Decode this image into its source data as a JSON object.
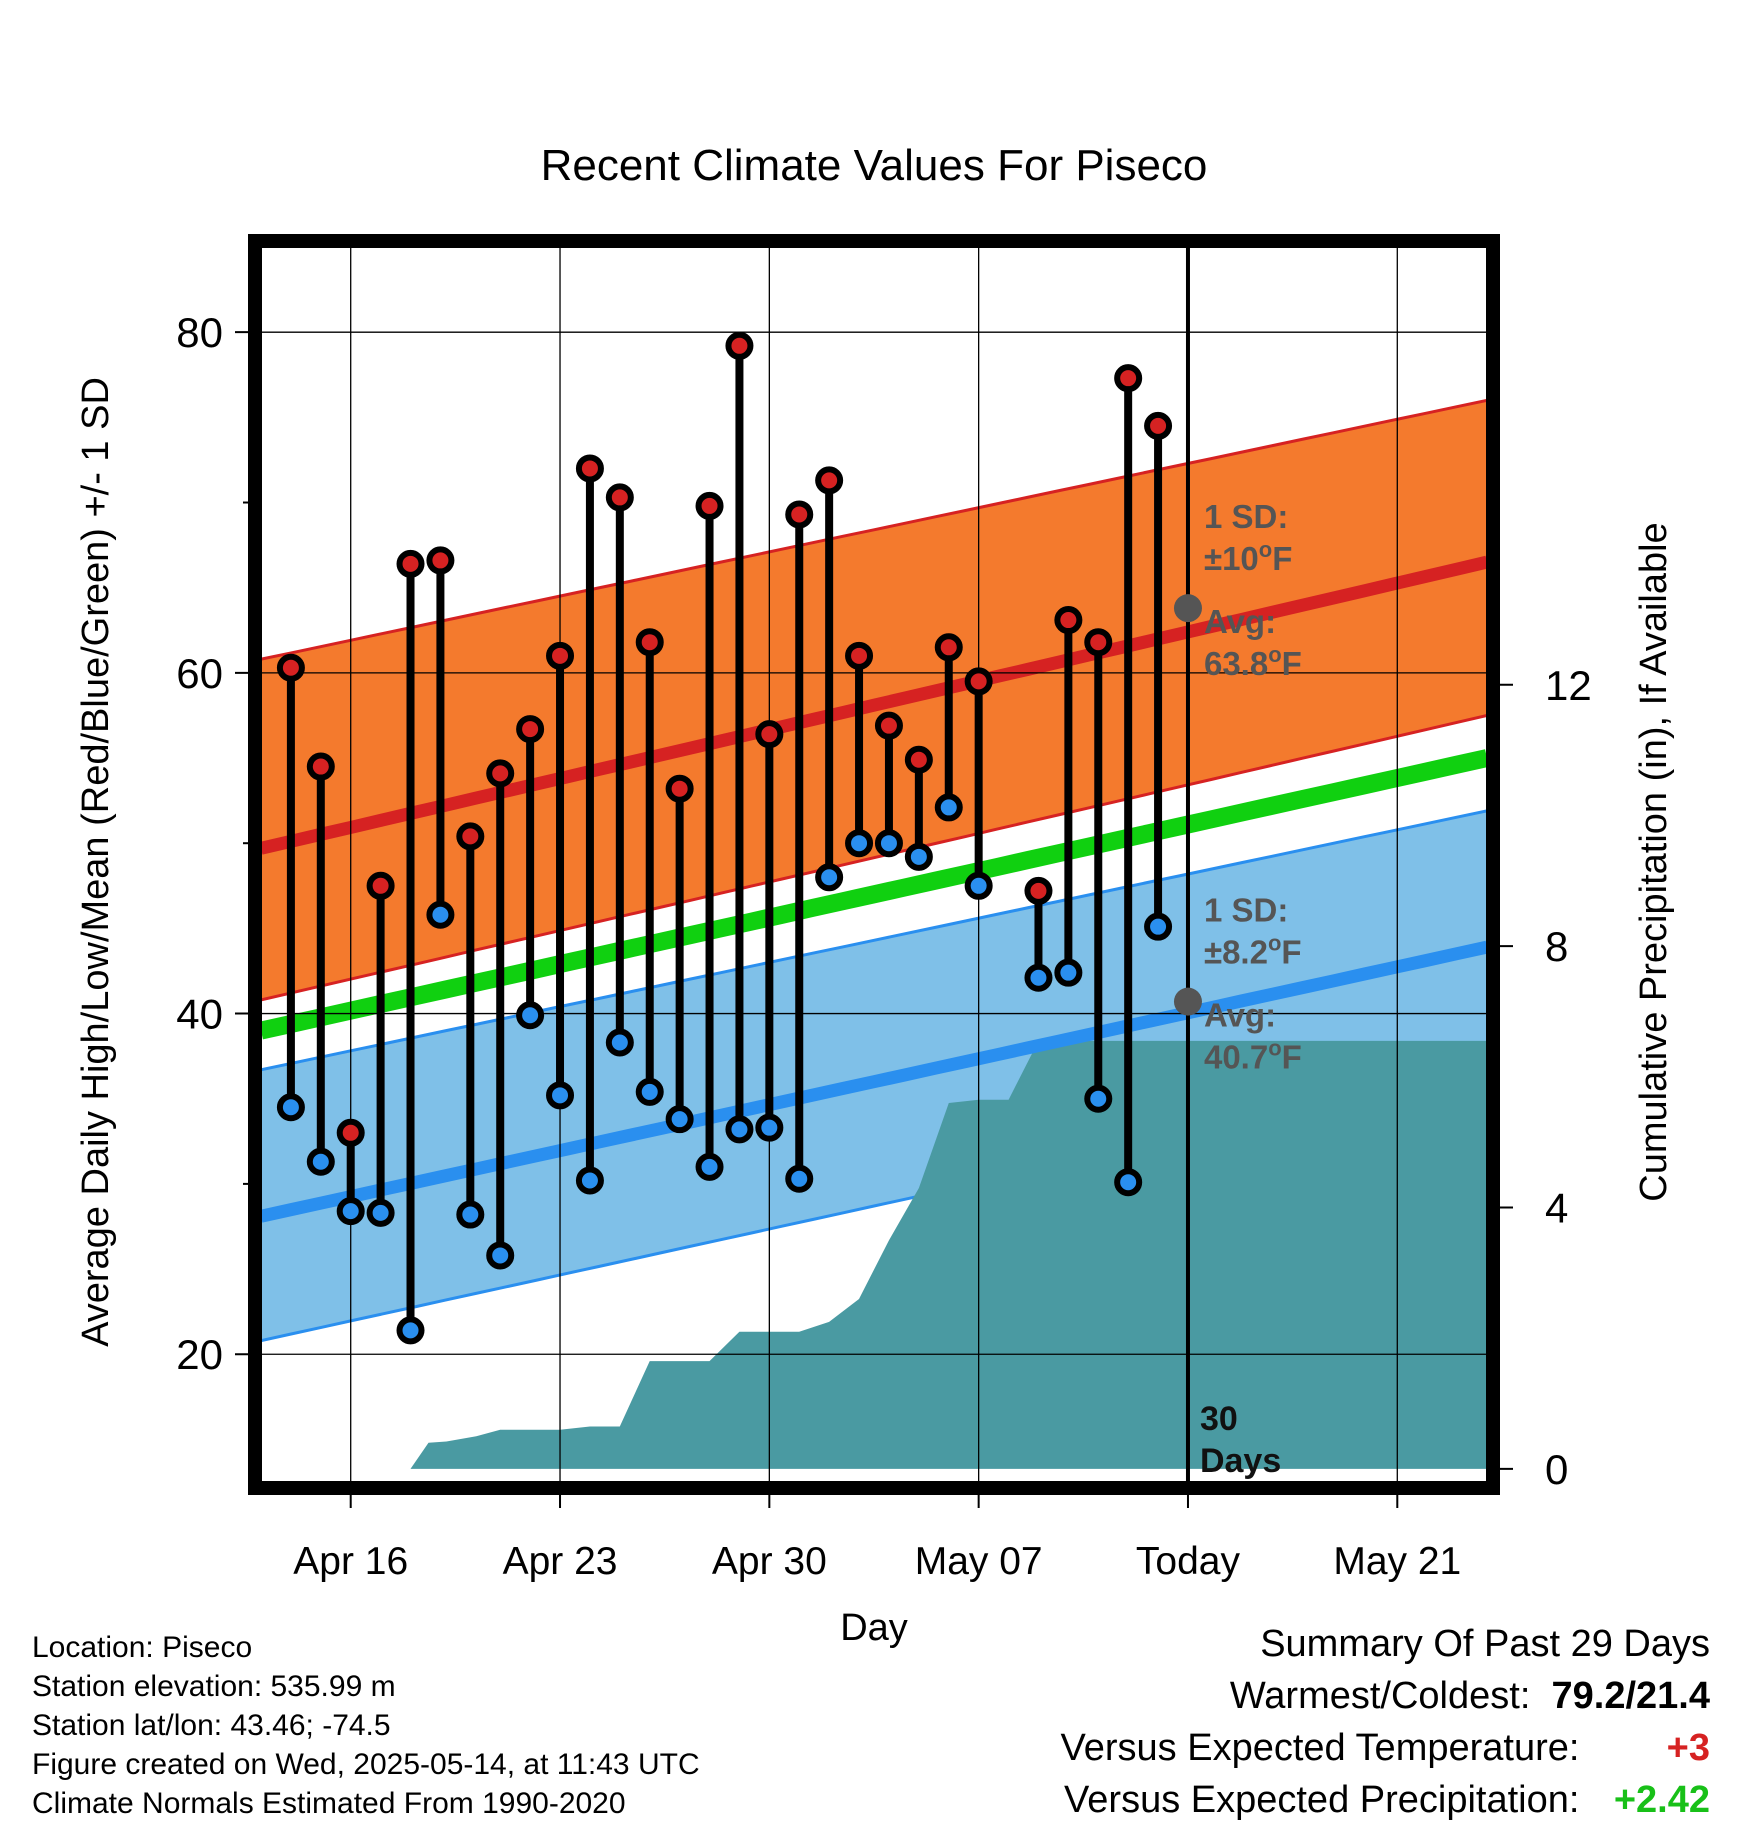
{
  "chart_data": {
    "type": "line",
    "title": "Recent Climate Values For Piseco",
    "xlabel": "Day",
    "ylabel": "Average Daily High/Low/Mean (Red/Blue/Green) +/- 1 SD",
    "y2label": "Cumulative Precipitation (in), If Available",
    "x_range": [
      "2025-04-13",
      "2025-05-24"
    ],
    "ylim": [
      12.5,
      85
    ],
    "y2lim": [
      -0.2,
      18.7
    ],
    "x_ticks": [
      {
        "date": "2025-04-16",
        "label": "Apr 16"
      },
      {
        "date": "2025-04-23",
        "label": "Apr 23"
      },
      {
        "date": "2025-04-30",
        "label": "Apr 30"
      },
      {
        "date": "2025-05-07",
        "label": "May 07"
      },
      {
        "date": "2025-05-14",
        "label": "Today"
      },
      {
        "date": "2025-05-21",
        "label": "May 21"
      }
    ],
    "y_ticks": [
      20,
      40,
      60,
      80
    ],
    "y_minor_ticks": [
      30,
      50,
      70
    ],
    "y2_ticks": [
      0,
      4,
      8,
      12
    ],
    "grid": true,
    "today": "2025-05-14",
    "today_label_line1": "30",
    "today_label_line2": "Days",
    "dates": [
      "2025-04-14",
      "2025-04-15",
      "2025-04-16",
      "2025-04-17",
      "2025-04-18",
      "2025-04-19",
      "2025-04-20",
      "2025-04-21",
      "2025-04-22",
      "2025-04-23",
      "2025-04-24",
      "2025-04-25",
      "2025-04-26",
      "2025-04-27",
      "2025-04-28",
      "2025-04-29",
      "2025-04-30",
      "2025-05-01",
      "2025-05-02",
      "2025-05-03",
      "2025-05-04",
      "2025-05-05",
      "2025-05-06",
      "2025-05-07",
      "2025-05-08",
      "2025-05-09",
      "2025-05-10",
      "2025-05-11",
      "2025-05-12",
      "2025-05-13"
    ],
    "highs": [
      60.3,
      54.5,
      33,
      47.5,
      66.4,
      66.6,
      50.4,
      54.1,
      56.7,
      61,
      72,
      70.3,
      61.8,
      53.2,
      69.8,
      79.2,
      56.4,
      69.3,
      71.3,
      61,
      56.9,
      54.9,
      61.5,
      59.5,
      null,
      47.2,
      63.1,
      61.8,
      77.3,
      74.5
    ],
    "lows": [
      34.5,
      31.3,
      28.4,
      28.3,
      21.4,
      45.8,
      28.2,
      25.8,
      39.9,
      35.2,
      30.2,
      38.3,
      35.4,
      33.8,
      31,
      33.2,
      33.3,
      30.3,
      48,
      50,
      50,
      49.2,
      52.1,
      47.5,
      null,
      42.1,
      42.4,
      35,
      30.1,
      45.1
    ],
    "normals": {
      "high_mean": [
        49.7,
        66.5
      ],
      "high_sd_lower": [
        40.8,
        57.5
      ],
      "high_sd_upper": [
        60.8,
        76
      ],
      "mean_mean": [
        39,
        55
      ],
      "low_mean": [
        28.1,
        43.9
      ],
      "low_sd_lower": [
        20.8,
        36.6
      ],
      "low_sd_upper": [
        36.7,
        51.9
      ]
    },
    "precip_cumulative": [
      {
        "date": "2025-04-17",
        "value": 0
      },
      {
        "date": "2025-04-18",
        "value": 0
      },
      {
        "date": "2025-04-18.6",
        "value": 0.4
      },
      {
        "date": "2025-04-19.2",
        "value": 0.42
      },
      {
        "date": "2025-04-20.2",
        "value": 0.5
      },
      {
        "date": "2025-04-21",
        "value": 0.6
      },
      {
        "date": "2025-04-23",
        "value": 0.6
      },
      {
        "date": "2025-04-24",
        "value": 0.65
      },
      {
        "date": "2025-04-25",
        "value": 0.65
      },
      {
        "date": "2025-04-26",
        "value": 1.65
      },
      {
        "date": "2025-04-28",
        "value": 1.65
      },
      {
        "date": "2025-04-29",
        "value": 2.1
      },
      {
        "date": "2025-05-01",
        "value": 2.1
      },
      {
        "date": "2025-05-02",
        "value": 2.25
      },
      {
        "date": "2025-05-03",
        "value": 2.6
      },
      {
        "date": "2025-05-04",
        "value": 3.5
      },
      {
        "date": "2025-05-05",
        "value": 4.3
      },
      {
        "date": "2025-05-06",
        "value": 5.6
      },
      {
        "date": "2025-05-07",
        "value": 5.65
      },
      {
        "date": "2025-05-08",
        "value": 5.65
      },
      {
        "date": "2025-05-09",
        "value": 6.55
      },
      {
        "date": "2025-05-24",
        "value": 6.55
      }
    ],
    "annotations": {
      "high_sd_l1": "1 SD:",
      "high_sd_l2": "±10",
      "high_avg_l1": "Avg:",
      "high_avg_l2": "63.8",
      "high_avg_value": 63.8,
      "low_sd_l1": "1 SD:",
      "low_sd_l2": "±8.2",
      "low_avg_l1": "Avg:",
      "low_avg_l2": "40.7",
      "low_avg_value": 40.7,
      "degree_sign": "o",
      "unit": "F"
    },
    "colors": {
      "high_band": "#f47a2d",
      "high_band_edge": "#d62222",
      "high_line": "#d62222",
      "low_band": "#7fc0e8",
      "low_band_edge": "#2a8fef",
      "low_line": "#2a8fef",
      "mean_line": "#10d010",
      "precip_fill": "#4a9aa2",
      "high_marker": "#d62222",
      "low_marker": "#2a8fef",
      "avg_dot": "#555555",
      "annotation_text": "#555555"
    }
  },
  "info": {
    "location": "Location: Piseco",
    "elevation": "Station elevation: 535.99 m",
    "latlon": "Station lat/lon: 43.46; -74.5",
    "created": "Figure created on Wed, 2025-05-14, at 11:43 UTC",
    "normals": "Climate Normals Estimated From 1990-2020"
  },
  "summary": {
    "title": "Summary Of Past 29 Days",
    "warm_cold_label": "Warmest/Coldest:",
    "warm_cold_value": "79.2/21.4",
    "temp_label": "Versus Expected Temperature:",
    "temp_value": "+3",
    "temp_color": "#d62222",
    "precip_label": "Versus Expected Precipitation:",
    "precip_value": "+2.42",
    "precip_color": "#18c018"
  }
}
